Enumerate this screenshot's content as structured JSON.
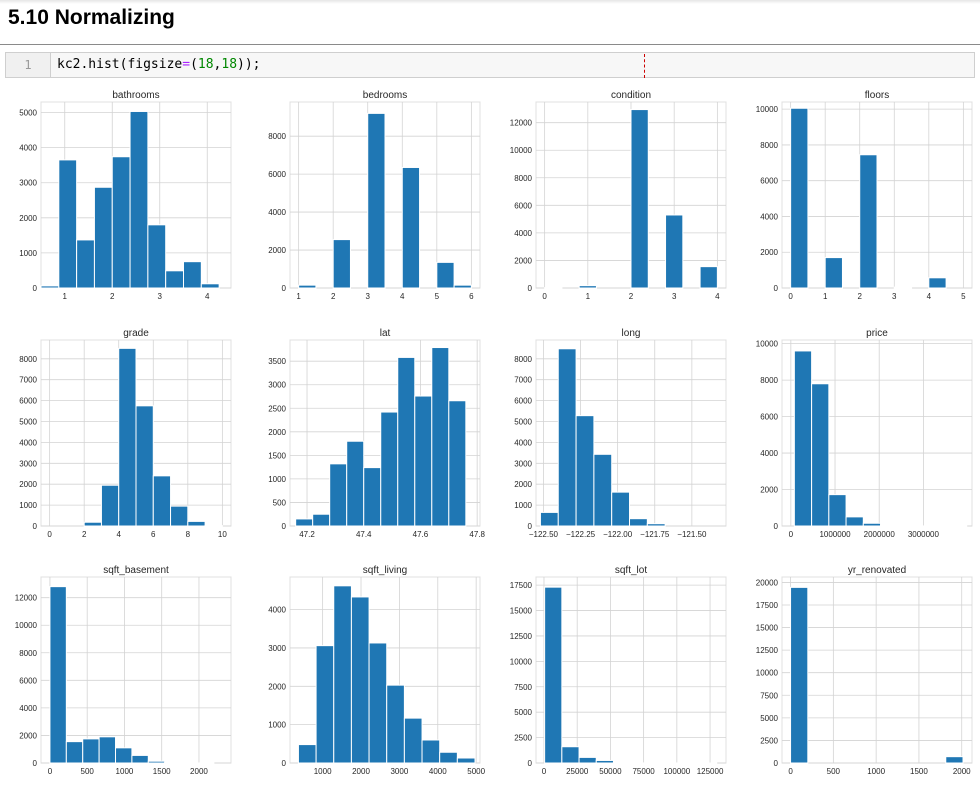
{
  "section": {
    "title": "5.10  Normalizing"
  },
  "code_cell": {
    "line_number": "1",
    "tokens": [
      {
        "text": "kc2.hist(figsize",
        "cls": ""
      },
      {
        "text": "=",
        "cls": "tok-op"
      },
      {
        "text": "(",
        "cls": ""
      },
      {
        "text": "18",
        "cls": "tok-num"
      },
      {
        "text": ",",
        "cls": ""
      },
      {
        "text": "18",
        "cls": "tok-num"
      },
      {
        "text": "));",
        "cls": ""
      }
    ]
  },
  "colors": {
    "bar": "#1f77b4",
    "bar_edge": "#ffffff",
    "grid": "#d3d3d3",
    "axes_edge": "#e0e0e0"
  },
  "chart_data": [
    {
      "type": "bar",
      "title": "bathrooms",
      "xlim": [
        0.5,
        4.5
      ],
      "ylim": [
        0,
        5300
      ],
      "xticks": [
        1,
        2,
        3,
        4
      ],
      "xticklabels": [
        "1",
        "2",
        "3",
        "4"
      ],
      "yticks": [
        0,
        1000,
        2000,
        3000,
        4000,
        5000
      ],
      "yticklabels": [
        "0",
        "1000",
        "2000",
        "3000",
        "4000",
        "5000"
      ],
      "bin_edges": [
        0.5,
        0.875,
        1.25,
        1.625,
        2.0,
        2.375,
        2.75,
        3.125,
        3.5,
        3.875,
        4.25
      ],
      "values": [
        60,
        3650,
        1370,
        2870,
        3740,
        5030,
        1800,
        490,
        750,
        120
      ]
    },
    {
      "type": "bar",
      "title": "bedrooms",
      "xlim": [
        0.75,
        6.25
      ],
      "ylim": [
        0,
        9800
      ],
      "xticks": [
        1,
        2,
        3,
        4,
        5,
        6
      ],
      "xticklabels": [
        "1",
        "2",
        "3",
        "4",
        "5",
        "6"
      ],
      "yticks": [
        0,
        2000,
        4000,
        6000,
        8000
      ],
      "yticklabels": [
        "0",
        "2000",
        "4000",
        "6000",
        "8000"
      ],
      "bin_edges": [
        1.0,
        1.5,
        2.0,
        2.5,
        3.0,
        3.5,
        4.0,
        4.5,
        5.0,
        5.5,
        6.0
      ],
      "values": [
        150,
        0,
        2550,
        0,
        9200,
        0,
        6350,
        0,
        1350,
        150
      ]
    },
    {
      "type": "bar",
      "title": "condition",
      "xlim": [
        -0.2,
        4.2
      ],
      "ylim": [
        0,
        13500
      ],
      "xticks": [
        0,
        1,
        2,
        3,
        4
      ],
      "xticklabels": [
        "0",
        "1",
        "2",
        "3",
        "4"
      ],
      "yticks": [
        0,
        2000,
        4000,
        6000,
        8000,
        10000,
        12000
      ],
      "yticklabels": [
        "0",
        "2000",
        "4000",
        "6000",
        "8000",
        "10000",
        "12000"
      ],
      "bin_edges": [
        0.0,
        0.4,
        0.8,
        1.2,
        1.6,
        2.0,
        2.4,
        2.8,
        3.2,
        3.6,
        4.0
      ],
      "values": [
        30,
        0,
        170,
        0,
        0,
        12950,
        0,
        5300,
        0,
        1550
      ]
    },
    {
      "type": "bar",
      "title": "floors",
      "xlim": [
        -0.25,
        5.25
      ],
      "ylim": [
        0,
        10400
      ],
      "xticks": [
        0,
        1,
        2,
        3,
        4,
        5
      ],
      "xticklabels": [
        "0",
        "1",
        "2",
        "3",
        "4",
        "5"
      ],
      "yticks": [
        0,
        2000,
        4000,
        6000,
        8000,
        10000
      ],
      "yticklabels": [
        "0",
        "2000",
        "4000",
        "6000",
        "8000",
        "10000"
      ],
      "bin_edges": [
        0.0,
        0.5,
        1.0,
        1.5,
        2.0,
        2.5,
        3.0,
        3.5,
        4.0,
        4.5,
        5.0
      ],
      "values": [
        10050,
        0,
        1700,
        0,
        7450,
        0,
        50,
        0,
        570,
        0
      ]
    },
    {
      "type": "bar",
      "title": "grade",
      "xlim": [
        -0.5,
        10.5
      ],
      "ylim": [
        0,
        8900
      ],
      "xticks": [
        0,
        2,
        4,
        6,
        8,
        10
      ],
      "xticklabels": [
        "0",
        "2",
        "4",
        "6",
        "8",
        "10"
      ],
      "yticks": [
        0,
        1000,
        2000,
        3000,
        4000,
        5000,
        6000,
        7000,
        8000
      ],
      "yticklabels": [
        "0",
        "1000",
        "2000",
        "3000",
        "4000",
        "5000",
        "6000",
        "7000",
        "8000"
      ],
      "bin_edges": [
        0,
        1,
        2,
        3,
        4,
        5,
        6,
        7,
        8,
        9,
        10
      ],
      "values": [
        0,
        0,
        180,
        1950,
        8500,
        5750,
        2400,
        950,
        220,
        20
      ]
    },
    {
      "type": "bar",
      "title": "lat",
      "xlim": [
        47.14,
        47.81
      ],
      "ylim": [
        0,
        3950
      ],
      "xticks": [
        47.2,
        47.4,
        47.6,
        47.8
      ],
      "xticklabels": [
        "47.2",
        "47.4",
        "47.6",
        "47.8"
      ],
      "yticks": [
        0,
        500,
        1000,
        1500,
        2000,
        2500,
        3000,
        3500
      ],
      "yticklabels": [
        "0",
        "500",
        "1000",
        "1500",
        "2000",
        "2500",
        "3000",
        "3500"
      ],
      "bin_edges": [
        47.16,
        47.22,
        47.28,
        47.34,
        47.4,
        47.46,
        47.52,
        47.58,
        47.64,
        47.7,
        47.76
      ],
      "values": [
        150,
        250,
        1320,
        1800,
        1240,
        2420,
        3580,
        2760,
        3790,
        2660
      ]
    },
    {
      "type": "bar",
      "title": "long",
      "xlim": [
        -122.55,
        -121.27
      ],
      "ylim": [
        0,
        8900
      ],
      "xticks": [
        -122.5,
        -122.25,
        -122.0,
        -121.75,
        -121.5
      ],
      "xticklabels": [
        "−122.50",
        "−122.25",
        "−122.00",
        "−121.75",
        "−121.50"
      ],
      "yticks": [
        0,
        1000,
        2000,
        3000,
        4000,
        5000,
        6000,
        7000,
        8000
      ],
      "yticklabels": [
        "0",
        "1000",
        "2000",
        "3000",
        "4000",
        "5000",
        "6000",
        "7000",
        "8000"
      ],
      "bin_edges": [
        -122.52,
        -122.4,
        -122.28,
        -122.16,
        -122.04,
        -121.92,
        -121.8,
        -121.68,
        -121.56,
        -121.44,
        -121.32
      ],
      "values": [
        650,
        8480,
        5280,
        3430,
        1620,
        350,
        110,
        0,
        0,
        0
      ]
    },
    {
      "type": "bar",
      "title": "price",
      "xlim": [
        -200000,
        4100000
      ],
      "ylim": [
        0,
        10200
      ],
      "xticks": [
        0,
        1000000,
        2000000,
        3000000
      ],
      "xticklabels": [
        "0",
        "1000000",
        "2000000",
        "3000000"
      ],
      "yticks": [
        0,
        2000,
        4000,
        6000,
        8000,
        10000
      ],
      "yticklabels": [
        "0",
        "2000",
        "4000",
        "6000",
        "8000",
        "10000"
      ],
      "bin_edges": [
        80000,
        470000,
        860000,
        1250000,
        1640000,
        2030000,
        2420000,
        2810000,
        3200000,
        3590000,
        3980000
      ],
      "values": [
        9600,
        7800,
        1720,
        500,
        150,
        45,
        15,
        5,
        3,
        2
      ]
    },
    {
      "type": "bar",
      "title": "sqft_basement",
      "xlim": [
        -120,
        2430
      ],
      "ylim": [
        0,
        13500
      ],
      "xticks": [
        0,
        500,
        1000,
        1500,
        2000
      ],
      "xticklabels": [
        "0",
        "500",
        "1000",
        "1500",
        "2000"
      ],
      "yticks": [
        0,
        2000,
        4000,
        6000,
        8000,
        10000,
        12000
      ],
      "yticklabels": [
        "0",
        "2000",
        "4000",
        "6000",
        "8000",
        "10000",
        "12000"
      ],
      "bin_edges": [
        0,
        220,
        440,
        660,
        880,
        1100,
        1320,
        1540,
        1760,
        1980,
        2200
      ],
      "values": [
        12800,
        1550,
        1750,
        1900,
        1100,
        550,
        130,
        30,
        10,
        5
      ]
    },
    {
      "type": "bar",
      "title": "sqft_living",
      "xlim": [
        150,
        5100
      ],
      "ylim": [
        0,
        4850
      ],
      "xticks": [
        1000,
        2000,
        3000,
        4000,
        5000
      ],
      "xticklabels": [
        "1000",
        "2000",
        "3000",
        "4000",
        "5000"
      ],
      "yticks": [
        0,
        1000,
        2000,
        3000,
        4000
      ],
      "yticklabels": [
        "0",
        "1000",
        "2000",
        "3000",
        "4000"
      ],
      "bin_edges": [
        370,
        830,
        1290,
        1750,
        2210,
        2670,
        3130,
        3590,
        4050,
        4510,
        4970
      ],
      "values": [
        480,
        3060,
        4620,
        4330,
        3130,
        2030,
        1170,
        600,
        280,
        130
      ]
    },
    {
      "type": "bar",
      "title": "sqft_lot",
      "xlim": [
        -6000,
        137000
      ],
      "ylim": [
        0,
        18300
      ],
      "xticks": [
        0,
        25000,
        50000,
        75000,
        100000,
        125000
      ],
      "xticklabels": [
        "0",
        "25000",
        "50000",
        "75000",
        "100000",
        "125000"
      ],
      "yticks": [
        0,
        2500,
        5000,
        7500,
        10000,
        12500,
        15000,
        17500
      ],
      "yticklabels": [
        "0",
        "2500",
        "5000",
        "7500",
        "10000",
        "12500",
        "15000",
        "17500"
      ],
      "bin_edges": [
        500,
        13450,
        26400,
        39350,
        52300,
        65250,
        78200,
        91150,
        104100,
        117050,
        130000
      ],
      "values": [
        17300,
        1600,
        550,
        250,
        40,
        10,
        5,
        3,
        2,
        1
      ]
    },
    {
      "type": "bar",
      "title": "yr_renovated",
      "xlim": [
        -100,
        2120
      ],
      "ylim": [
        0,
        20600
      ],
      "xticks": [
        0,
        500,
        1000,
        1500,
        2000
      ],
      "xticklabels": [
        "0",
        "500",
        "1000",
        "1500",
        "2000"
      ],
      "yticks": [
        0,
        2500,
        5000,
        7500,
        10000,
        12500,
        15000,
        17500,
        20000
      ],
      "yticklabels": [
        "0",
        "2500",
        "5000",
        "7500",
        "10000",
        "12500",
        "15000",
        "17500",
        "20000"
      ],
      "bin_edges": [
        0,
        201.5,
        403,
        604.5,
        806,
        1007.5,
        1209,
        1410.5,
        1612,
        1813.5,
        2015
      ],
      "values": [
        19450,
        0,
        0,
        0,
        0,
        0,
        0,
        0,
        0,
        700
      ]
    }
  ]
}
